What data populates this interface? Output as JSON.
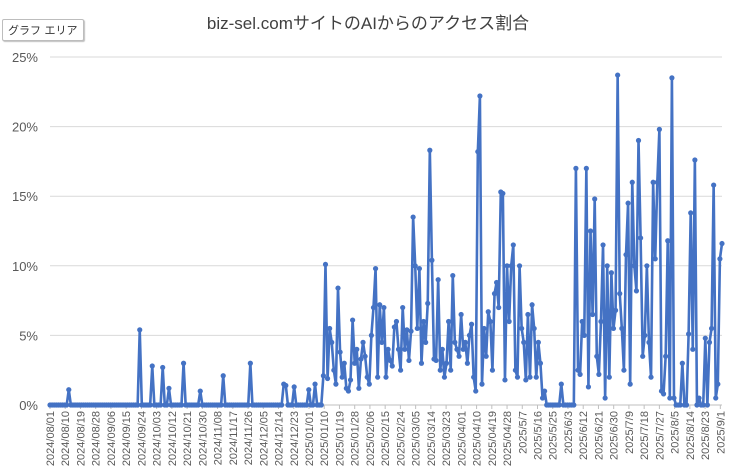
{
  "chart_area_label": "グラフ エリア",
  "colors": {
    "line": "#4472C4",
    "grid": "#d9d9d9",
    "text": "#595959",
    "title": "#404040"
  },
  "chart_data": {
    "type": "line",
    "title": "biz-sel.comサイトのAIからのアクセス割合",
    "xlabel": "",
    "ylabel": "",
    "ylim": [
      0,
      0.25
    ],
    "y_ticks": [
      0,
      0.05,
      0.1,
      0.15,
      0.2,
      0.25
    ],
    "y_tick_labels": [
      "0%",
      "5%",
      "10%",
      "15%",
      "20%",
      "25%"
    ],
    "x_tick_labels": [
      "2024/08/01",
      "2024/08/10",
      "2024/08/19",
      "2024/08/28",
      "2024/09/06",
      "2024/09/15",
      "2024/09/24",
      "2024/10/03",
      "2024/10/12",
      "2024/10/21",
      "2024/10/30",
      "2024/11/08",
      "2024/11/17",
      "2024/11/26",
      "2024/12/05",
      "2024/12/14",
      "2024/12/23",
      "2025/01/01",
      "2025/01/10",
      "2025/01/19",
      "2025/01/28",
      "2025/02/06",
      "2025/02/15",
      "2025/02/24",
      "2025/03/05",
      "2025/03/14",
      "2025/03/23",
      "2025/04/01",
      "2025/04/10",
      "2025/04/19",
      "2025/04/28",
      "2025/5/7",
      "2025/5/16",
      "2025/5/25",
      "2025/6/3",
      "2025/6/12",
      "2025/6/21",
      "2025/6/30",
      "2025/7/9",
      "2025/7/18",
      "2025/7/27",
      "2025/8/5",
      "2025/8/14",
      "2025/8/23",
      "2025/9/1"
    ],
    "grid": true,
    "legend": "none",
    "series": [
      {
        "start_date": "2024-08-01",
        "points": [
          [
            9,
            0.011
          ],
          [
            43,
            0.054
          ],
          [
            49,
            0.028
          ],
          [
            54,
            0.027
          ],
          [
            57,
            0.012
          ],
          [
            64,
            0.03
          ],
          [
            72,
            0.01
          ],
          [
            83,
            0.021
          ],
          [
            96,
            0.03
          ],
          [
            112,
            0.015
          ],
          [
            113,
            0.014
          ],
          [
            117,
            0.013
          ],
          [
            124,
            0.011
          ],
          [
            127,
            0.015
          ],
          [
            131,
            0.021
          ],
          [
            132,
            0.101
          ],
          [
            133,
            0.019
          ],
          [
            134,
            0.055
          ],
          [
            135,
            0.045
          ],
          [
            136,
            0.025
          ],
          [
            137,
            0.015
          ],
          [
            138,
            0.084
          ],
          [
            139,
            0.038
          ],
          [
            140,
            0.02
          ],
          [
            141,
            0.03
          ],
          [
            142,
            0.012
          ],
          [
            143,
            0.01
          ],
          [
            144,
            0.018
          ],
          [
            145,
            0.061
          ],
          [
            146,
            0.03
          ],
          [
            147,
            0.04
          ],
          [
            148,
            0.012
          ],
          [
            149,
            0.033
          ],
          [
            150,
            0.045
          ],
          [
            151,
            0.035
          ],
          [
            152,
            0.02
          ],
          [
            153,
            0.015
          ],
          [
            154,
            0.05
          ],
          [
            155,
            0.07
          ],
          [
            156,
            0.098
          ],
          [
            157,
            0.02
          ],
          [
            158,
            0.072
          ],
          [
            159,
            0.045
          ],
          [
            160,
            0.07
          ],
          [
            161,
            0.02
          ],
          [
            162,
            0.04
          ],
          [
            163,
            0.032
          ],
          [
            164,
            0.028
          ],
          [
            165,
            0.056
          ],
          [
            166,
            0.06
          ],
          [
            167,
            0.04
          ],
          [
            168,
            0.025
          ],
          [
            169,
            0.07
          ],
          [
            170,
            0.04
          ],
          [
            171,
            0.054
          ],
          [
            172,
            0.032
          ],
          [
            173,
            0.053
          ],
          [
            174,
            0.135
          ],
          [
            175,
            0.1
          ],
          [
            176,
            0.055
          ],
          [
            177,
            0.098
          ],
          [
            178,
            0.03
          ],
          [
            179,
            0.06
          ],
          [
            180,
            0.045
          ],
          [
            181,
            0.073
          ],
          [
            182,
            0.183
          ],
          [
            183,
            0.104
          ],
          [
            184,
            0.033
          ],
          [
            185,
            0.032
          ],
          [
            186,
            0.09
          ],
          [
            187,
            0.025
          ],
          [
            188,
            0.04
          ],
          [
            189,
            0.02
          ],
          [
            190,
            0.03
          ],
          [
            191,
            0.06
          ],
          [
            192,
            0.025
          ],
          [
            193,
            0.093
          ],
          [
            194,
            0.045
          ],
          [
            195,
            0.04
          ],
          [
            196,
            0.035
          ],
          [
            197,
            0.065
          ],
          [
            198,
            0.04
          ],
          [
            199,
            0.045
          ],
          [
            200,
            0.03
          ],
          [
            201,
            0.05
          ],
          [
            202,
            0.058
          ],
          [
            203,
            0.02
          ],
          [
            204,
            0.01
          ],
          [
            205,
            0.182
          ],
          [
            206,
            0.222
          ],
          [
            207,
            0.015
          ],
          [
            208,
            0.055
          ],
          [
            209,
            0.035
          ],
          [
            210,
            0.067
          ],
          [
            211,
            0.06
          ],
          [
            212,
            0.025
          ],
          [
            213,
            0.08
          ],
          [
            214,
            0.088
          ],
          [
            215,
            0.07
          ],
          [
            216,
            0.153
          ],
          [
            217,
            0.152
          ],
          [
            218,
            0.018
          ],
          [
            219,
            0.1
          ],
          [
            220,
            0.06
          ],
          [
            221,
            0.1
          ],
          [
            222,
            0.115
          ],
          [
            223,
            0.025
          ],
          [
            224,
            0.02
          ],
          [
            225,
            0.1
          ],
          [
            226,
            0.055
          ],
          [
            227,
            0.045
          ],
          [
            228,
            0.018
          ],
          [
            229,
            0.065
          ],
          [
            230,
            0.02
          ],
          [
            231,
            0.072
          ],
          [
            232,
            0.055
          ],
          [
            233,
            0.02
          ],
          [
            234,
            0.045
          ],
          [
            235,
            0.03
          ],
          [
            236,
            0.005
          ],
          [
            237,
            0.01
          ],
          [
            245,
            0.015
          ],
          [
            252,
            0.17
          ],
          [
            253,
            0.025
          ],
          [
            254,
            0.022
          ],
          [
            255,
            0.06
          ],
          [
            256,
            0.05
          ],
          [
            257,
            0.17
          ],
          [
            258,
            0.013
          ],
          [
            259,
            0.125
          ],
          [
            260,
            0.065
          ],
          [
            261,
            0.148
          ],
          [
            262,
            0.035
          ],
          [
            263,
            0.022
          ],
          [
            264,
            0.06
          ],
          [
            265,
            0.115
          ],
          [
            266,
            0.005
          ],
          [
            267,
            0.1
          ],
          [
            268,
            0.02
          ],
          [
            269,
            0.095
          ],
          [
            270,
            0.055
          ],
          [
            271,
            0.068
          ],
          [
            272,
            0.237
          ],
          [
            273,
            0.08
          ],
          [
            274,
            0.055
          ],
          [
            275,
            0.025
          ],
          [
            276,
            0.108
          ],
          [
            277,
            0.145
          ],
          [
            278,
            0.015
          ],
          [
            279,
            0.16
          ],
          [
            280,
            0.1
          ],
          [
            281,
            0.082
          ],
          [
            282,
            0.19
          ],
          [
            283,
            0.12
          ],
          [
            284,
            0.035
          ],
          [
            285,
            0.05
          ],
          [
            286,
            0.1
          ],
          [
            287,
            0.045
          ],
          [
            288,
            0.02
          ],
          [
            289,
            0.16
          ],
          [
            290,
            0.105
          ],
          [
            291,
            0.16
          ],
          [
            292,
            0.198
          ],
          [
            293,
            0.01
          ],
          [
            294,
            0.008
          ],
          [
            295,
            0.035
          ],
          [
            296,
            0.118
          ],
          [
            297,
            0.005
          ],
          [
            298,
            0.235
          ],
          [
            299,
            0.005
          ],
          [
            303,
            0.03
          ],
          [
            306,
            0.051
          ],
          [
            307,
            0.138
          ],
          [
            308,
            0.04
          ],
          [
            309,
            0.176
          ],
          [
            311,
            0.005
          ],
          [
            314,
            0.048
          ],
          [
            316,
            0.045
          ],
          [
            317,
            0.055
          ],
          [
            318,
            0.158
          ],
          [
            319,
            0.005
          ],
          [
            320,
            0.015
          ],
          [
            321,
            0.105
          ],
          [
            322,
            0.116
          ]
        ],
        "last_day": 322
      }
    ]
  }
}
